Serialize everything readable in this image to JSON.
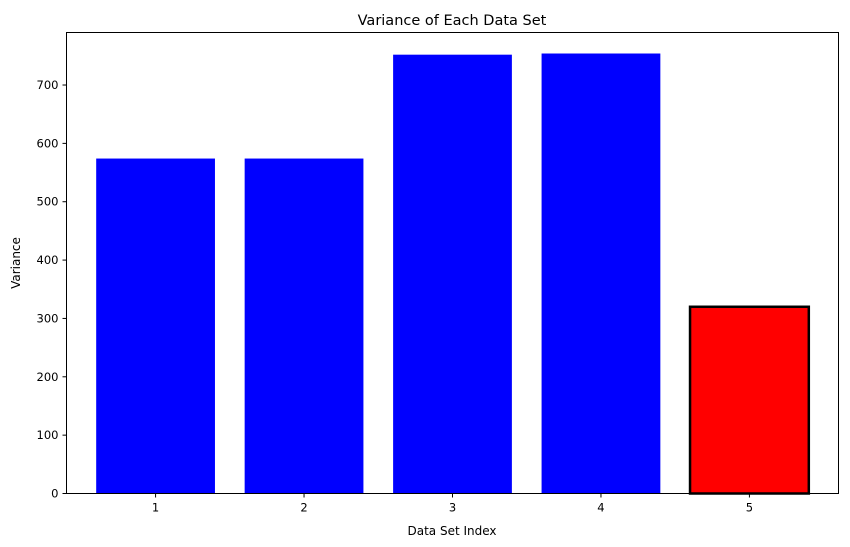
{
  "chart_data": {
    "type": "bar",
    "title": "Variance of Each Data Set",
    "xlabel": "Data Set Index",
    "ylabel": "Variance",
    "categories": [
      "1",
      "2",
      "3",
      "4",
      "5"
    ],
    "values": [
      574,
      574,
      752,
      754,
      320
    ],
    "bar_colors": [
      "#0000ff",
      "#0000ff",
      "#0000ff",
      "#0000ff",
      "#ff0000"
    ],
    "highlighted_bar_index": 4,
    "highlight_edge_color": "#000000",
    "ylim": [
      0,
      790
    ],
    "yticks": [
      0,
      100,
      200,
      300,
      400,
      500,
      600,
      700
    ],
    "grid": false,
    "legend": "none"
  }
}
